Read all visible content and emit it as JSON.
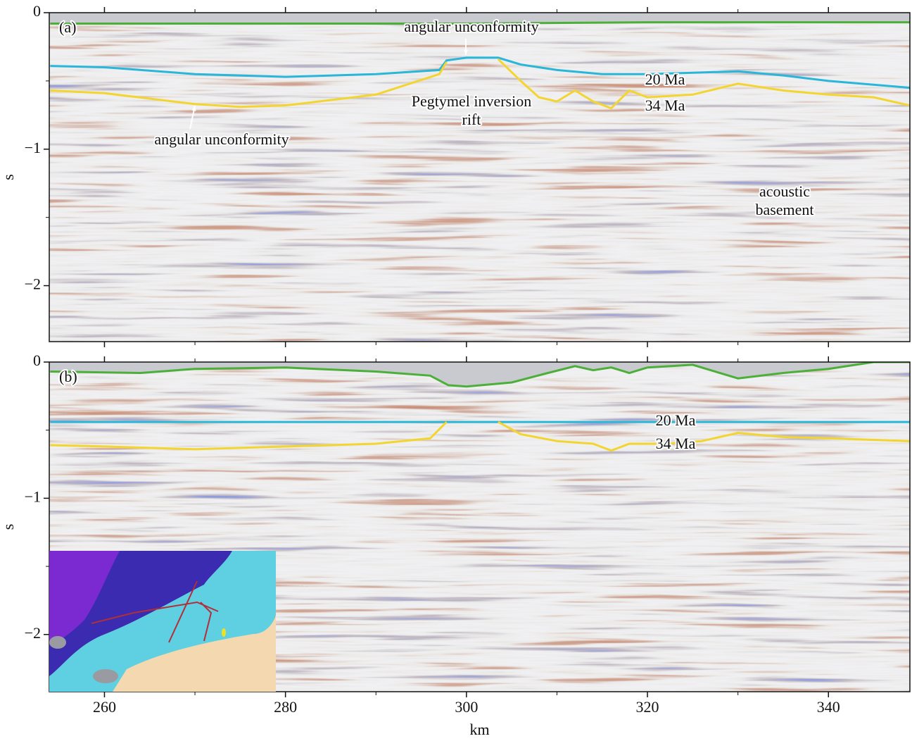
{
  "chart_data": [
    {
      "type": "seismic",
      "panel_label": "(a)",
      "ylabel": "s",
      "xlim": [
        253.9,
        349
      ],
      "ylim": [
        -2.41,
        0
      ],
      "xticks": [
        260,
        280,
        300,
        320,
        340
      ],
      "xminor": [
        270,
        290,
        310,
        330
      ],
      "yticks": [
        {
          "value": 0,
          "label": "0"
        },
        {
          "value": -1,
          "label": "−1"
        },
        {
          "value": -2,
          "label": "−2"
        }
      ],
      "yminor": [
        -0.5,
        -1.5
      ],
      "series": [
        {
          "color": "#4caf3a",
          "x": [
            254,
            264,
            280,
            300,
            320,
            340,
            349
          ],
          "values": [
            -0.08,
            -0.08,
            -0.08,
            -0.08,
            -0.07,
            -0.07,
            -0.07
          ]
        },
        {
          "name": "20 Ma",
          "color": "#29b6d8",
          "x": [
            254,
            260,
            270,
            280,
            290,
            297,
            297.8,
            300,
            303.5,
            306,
            310,
            315,
            320,
            325,
            330,
            335,
            340,
            349
          ],
          "values": [
            -0.39,
            -0.4,
            -0.45,
            -0.47,
            -0.45,
            -0.42,
            -0.35,
            -0.33,
            -0.33,
            -0.38,
            -0.42,
            -0.45,
            -0.45,
            -0.44,
            -0.43,
            -0.46,
            -0.5,
            -0.55
          ]
        },
        {
          "name": "34 Ma",
          "color": "#f2d530",
          "x": [
            254,
            260,
            270,
            275,
            280,
            290,
            297,
            297.8,
            300,
            303.5,
            306,
            308,
            310,
            312,
            314,
            316,
            318,
            320,
            325,
            330,
            335,
            340,
            345,
            349
          ],
          "values": [
            -0.57,
            -0.59,
            -0.67,
            -0.69,
            -0.68,
            -0.6,
            -0.45,
            -0.36,
            null,
            -0.34,
            -0.5,
            -0.62,
            -0.65,
            -0.57,
            -0.65,
            -0.7,
            -0.57,
            -0.62,
            -0.6,
            -0.52,
            -0.57,
            -0.6,
            -0.62,
            -0.68
          ]
        }
      ],
      "annotations": [
        {
          "text": [
            "angular unconformity"
          ]
        },
        {
          "text": [
            "angular unconformity"
          ]
        },
        {
          "text": [
            "Pegtymel inversion",
            "rift"
          ]
        },
        {
          "text": [
            "acoustic",
            "basement"
          ]
        }
      ]
    },
    {
      "type": "seismic",
      "panel_label": "(b)",
      "ylabel": "s",
      "xlabel": "km",
      "xlim": [
        253.9,
        349
      ],
      "ylim": [
        -2.42,
        0
      ],
      "xticks": [
        260,
        280,
        300,
        320,
        340
      ],
      "xminor": [
        270,
        290,
        310,
        330
      ],
      "yticks": [
        {
          "value": 0,
          "label": "0"
        },
        {
          "value": -1,
          "label": "−1"
        },
        {
          "value": -2,
          "label": "−2"
        }
      ],
      "yminor": [
        -0.5,
        -1.5
      ],
      "series": [
        {
          "color": "#4caf3a",
          "x": [
            254,
            264,
            270,
            280,
            290,
            296,
            298,
            300,
            305,
            309,
            312,
            314,
            316,
            318,
            320,
            325,
            330,
            335,
            340,
            345,
            349
          ],
          "values": [
            -0.07,
            -0.08,
            -0.05,
            -0.04,
            -0.07,
            -0.1,
            -0.17,
            -0.18,
            -0.15,
            -0.08,
            -0.03,
            -0.06,
            -0.04,
            -0.08,
            -0.04,
            -0.02,
            -0.12,
            -0.08,
            -0.05,
            0,
            0
          ]
        },
        {
          "name": "20 Ma",
          "color": "#29b6d8",
          "x": [
            254,
            349
          ],
          "values": [
            -0.44,
            -0.44
          ]
        },
        {
          "name": "34 Ma",
          "color": "#f2d530",
          "x": [
            254,
            260,
            270,
            280,
            290,
            296,
            297.8,
            300,
            303.5,
            306,
            310,
            314,
            316,
            318,
            322,
            326,
            330,
            335,
            340,
            349
          ],
          "values": [
            -0.61,
            -0.62,
            -0.64,
            -0.62,
            -0.6,
            -0.56,
            -0.44,
            null,
            -0.44,
            -0.53,
            -0.58,
            -0.6,
            -0.65,
            -0.6,
            -0.6,
            -0.58,
            -0.52,
            -0.55,
            -0.56,
            -0.58
          ]
        }
      ],
      "annotations": []
    }
  ]
}
